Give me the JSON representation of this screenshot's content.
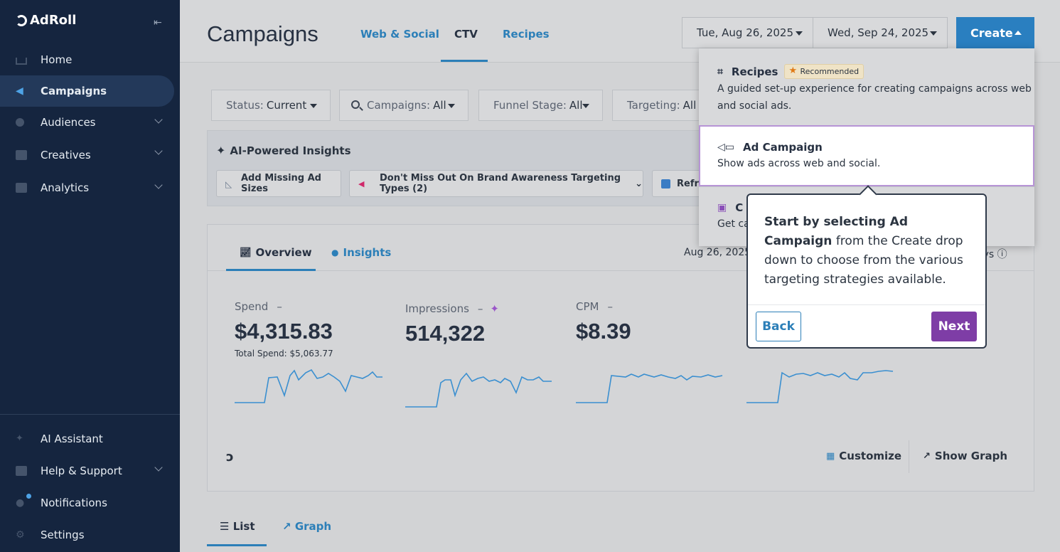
{
  "app": {
    "logo_text": "AdRoll"
  },
  "sidebar": {
    "items": [
      {
        "label": "Home",
        "icon": "home-icon"
      },
      {
        "label": "Campaigns",
        "icon": "megaphone-icon",
        "active": true
      },
      {
        "label": "Audiences",
        "icon": "users-icon"
      },
      {
        "label": "Creatives",
        "icon": "grid-icon"
      },
      {
        "label": "Analytics",
        "icon": "chart-icon"
      }
    ],
    "bottom_items": [
      {
        "label": "AI Assistant",
        "icon": "sparkle-icon"
      },
      {
        "label": "Help & Support",
        "icon": "help-icon"
      },
      {
        "label": "Notifications",
        "icon": "bell-icon"
      },
      {
        "label": "Settings",
        "icon": "gear-icon"
      }
    ]
  },
  "header": {
    "title": "Campaigns",
    "tabs": [
      "Web & Social",
      "CTV",
      "Recipes"
    ],
    "date_start": "Tue, Aug 26, 2025",
    "date_end": "Wed, Sep 24, 2025",
    "create_label": "Create"
  },
  "filters": {
    "status_label": "Status:",
    "status_value": "Current",
    "campaigns_label": "Campaigns:",
    "campaigns_value": "All",
    "funnel_label": "Funnel Stage:",
    "funnel_value": "All",
    "targeting_label": "Targeting:",
    "targeting_value": "All"
  },
  "ai_insights": {
    "title": "AI-Powered Insights",
    "chips": [
      "Add Missing Ad Sizes",
      "Don't Miss Out On Brand Awareness Targeting Types (2)",
      "Refre"
    ]
  },
  "overview": {
    "tabs": [
      "Overview",
      "Insights"
    ],
    "date_range": "Aug 26, 2025",
    "days_suffix": "ays",
    "metrics": [
      {
        "label": "Spend",
        "delta": "–",
        "value": "$4,315.83",
        "sub": "Total Spend: $5,063.77"
      },
      {
        "label": "Impressions",
        "delta": "–",
        "value": "514,322"
      },
      {
        "label": "CPM",
        "delta": "–",
        "value": "$8.39"
      }
    ],
    "customize_label": "Customize",
    "show_graph_label": "Show Graph"
  },
  "bottom_tabs": [
    "List",
    "Graph"
  ],
  "create_menu": {
    "items": [
      {
        "title": "Recipes",
        "badge": "Recommended",
        "desc": "A guided set-up experience for creating campaigns across web and social ads."
      },
      {
        "title": "Ad Campaign",
        "desc": "Show ads across web and social."
      },
      {
        "title": "C",
        "desc": "Get ca"
      }
    ]
  },
  "tooltip": {
    "bold": "Start by selecting Ad Campaign",
    "text": "from the Create drop down to choose from the various targeting strategies available.",
    "back_label": "Back",
    "next_label": "Next"
  },
  "colors": {
    "accent": "#2a7fc0",
    "sidebar": "#15253f",
    "next": "#7e3da6"
  }
}
